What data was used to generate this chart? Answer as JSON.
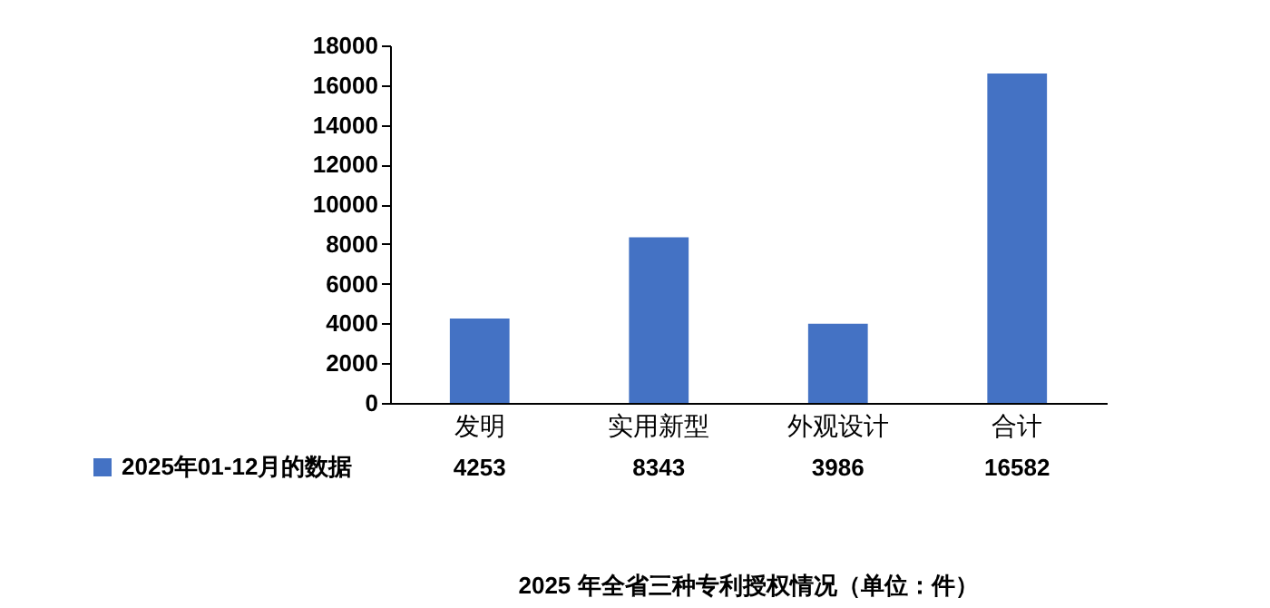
{
  "chart_data": {
    "type": "bar",
    "title": "2025 年全省三种专利授权情况（单位：件）",
    "categories": [
      "发明",
      "实用新型",
      "外观设计",
      "合计"
    ],
    "series": [
      {
        "name": "2025年01-12月的数据",
        "color": "#4472c4",
        "values": [
          4253,
          8343,
          3986,
          16582
        ]
      }
    ],
    "ylim": [
      0,
      18000
    ],
    "yticks": [
      0,
      2000,
      4000,
      6000,
      8000,
      10000,
      12000,
      14000,
      16000,
      18000
    ],
    "data_labels": true,
    "legend": "bottom left"
  }
}
